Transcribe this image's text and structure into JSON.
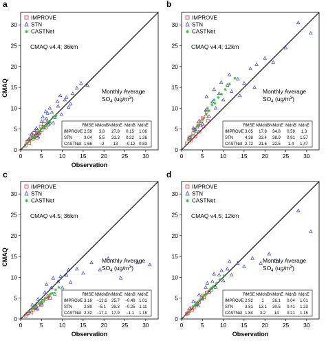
{
  "colors": {
    "IMPROVE": "#e8302c",
    "STN": "#2f3fd8",
    "CASTNet": "#33c233",
    "line": "#000000",
    "axis": "#000000"
  },
  "chart_data": [
    {
      "type": "scatter",
      "panel_label": "a",
      "annotation": "CMAQ v4.4; 36km",
      "avg_line1": "Monthly  Average",
      "avg_line2_pre": "SO",
      "avg_line2_sub": "4",
      "avg_line2_mid": " (ug/m",
      "avg_line2_sup": "3",
      "avg_line2_post": ")",
      "xlabel": "Observation",
      "ylabel": "CMAQ",
      "xlim": [
        0,
        33
      ],
      "ylim": [
        0,
        33
      ],
      "x_ticks": [
        "0",
        "5",
        "10",
        "15",
        "20",
        "25",
        "30"
      ],
      "y_ticks": [
        "0",
        "5",
        "10",
        "15",
        "20",
        "25",
        "30"
      ],
      "show_xlabel": true,
      "legend": [
        "IMPROVE",
        "STN",
        "CASTNet"
      ],
      "stats_headers": [
        "RMSE",
        "NMdnB",
        "NMdnE",
        "MdnB",
        "MdnE"
      ],
      "stats_rows": [
        {
          "network": "IMPROVE",
          "values": [
            "2.59",
            "3.8",
            "27.8",
            "0.15",
            "1.06"
          ]
        },
        {
          "network": "STN",
          "values": [
            "3.04",
            "5.5",
            "31.3",
            "0.22",
            "1.26"
          ]
        },
        {
          "network": "CASTNet",
          "values": [
            "1.66",
            "−2",
            "13",
            "−0.12",
            "0.83"
          ]
        }
      ],
      "series": [
        {
          "name": "IMPROVE",
          "x": [
            1.2,
            1.8,
            2.1,
            2.5,
            3.0,
            3.2,
            3.6,
            4.0,
            4.3,
            4.8,
            5.1,
            5.5,
            6.0,
            2.8,
            3.9,
            4.6,
            5.8,
            6.5,
            1.5,
            2.3
          ],
          "y": [
            1.0,
            2.2,
            1.6,
            3.0,
            2.6,
            4.1,
            3.3,
            4.5,
            3.8,
            5.6,
            4.7,
            6.2,
            5.3,
            3.5,
            2.9,
            4.2,
            6.9,
            6.0,
            1.9,
            2.7
          ]
        },
        {
          "name": "STN",
          "x": [
            2.0,
            2.6,
            3.2,
            3.8,
            4.4,
            5.0,
            5.6,
            6.2,
            6.8,
            7.5,
            8.2,
            9.0,
            9.8,
            10.6,
            11.5,
            12.5,
            13.5,
            14.5,
            16.0,
            4.2,
            5.3,
            6.5,
            7.8,
            8.8,
            3.4,
            9.5,
            11.0,
            12.0,
            7.0,
            6.0
          ],
          "y": [
            2.5,
            3.8,
            3.0,
            5.2,
            4.0,
            6.8,
            5.4,
            7.5,
            6.2,
            9.0,
            7.8,
            10.5,
            8.5,
            12.0,
            10.2,
            13.5,
            14.8,
            16.0,
            15.5,
            3.1,
            7.9,
            8.8,
            6.5,
            11.6,
            4.6,
            13.0,
            12.6,
            11.0,
            10.0,
            9.2
          ]
        },
        {
          "name": "CASTNet",
          "x": [
            1.5,
            2.2,
            2.9,
            3.5,
            4.1,
            4.7,
            5.3,
            5.9,
            6.5,
            7.1,
            7.8,
            8.5,
            3.1,
            4.9,
            6.2
          ],
          "y": [
            1.6,
            2.0,
            3.1,
            3.2,
            4.4,
            4.5,
            5.5,
            5.6,
            6.8,
            6.6,
            7.9,
            8.2,
            2.8,
            5.1,
            5.9
          ]
        }
      ]
    },
    {
      "type": "scatter",
      "panel_label": "b",
      "annotation": "CMAQ v4.4; 12km",
      "avg_line1": "Monthly  Average",
      "avg_line2_pre": "SO",
      "avg_line2_sub": "4",
      "avg_line2_mid": " (ug/m",
      "avg_line2_sup": "3",
      "avg_line2_post": ")",
      "xlabel": "",
      "ylabel": "",
      "xlim": [
        0,
        33
      ],
      "ylim": [
        0,
        33
      ],
      "x_ticks": [
        "0",
        "5",
        "10",
        "15",
        "20",
        "25",
        "30"
      ],
      "y_ticks": [
        "0",
        "5",
        "10",
        "15",
        "20",
        "25",
        "30"
      ],
      "show_xlabel": false,
      "legend": [
        "IMPROVE",
        "STN",
        "CASTNet"
      ],
      "stats_headers": [
        "RMSE",
        "NMdnB",
        "NMdnE",
        "MdnB",
        "MdnE"
      ],
      "stats_rows": [
        {
          "network": "IMPROVE",
          "values": [
            "3.05",
            "17.8",
            "34.8",
            "0.59",
            "1.3"
          ]
        },
        {
          "network": "STN",
          "values": [
            "4.38",
            "23.4",
            "38.9",
            "0.91",
            "1.57"
          ]
        },
        {
          "network": "CASTNet",
          "values": [
            "2.72",
            "21.6",
            "22.5",
            "1.4",
            "1.47"
          ]
        }
      ],
      "series": [
        {
          "name": "IMPROVE",
          "x": [
            1.2,
            1.8,
            2.3,
            2.8,
            3.3,
            3.8,
            4.3,
            4.8,
            5.3,
            5.8,
            6.3,
            2.0,
            3.0,
            4.0,
            5.0,
            6.0
          ],
          "y": [
            1.6,
            2.8,
            2.2,
            4.0,
            3.2,
            5.4,
            4.4,
            6.8,
            5.6,
            8.0,
            7.0,
            3.0,
            4.8,
            6.2,
            7.6,
            9.2
          ]
        },
        {
          "name": "STN",
          "x": [
            2.0,
            2.8,
            3.5,
            4.2,
            5.0,
            5.8,
            6.6,
            7.4,
            8.2,
            9.0,
            10.0,
            11.0,
            12.0,
            13.5,
            15.0,
            16.5,
            18.0,
            20.0,
            22.0,
            25.0,
            28.0,
            31.0,
            4.5,
            6.0,
            7.8,
            9.5,
            11.5,
            3.2,
            14.0,
            17.5
          ],
          "y": [
            3.0,
            5.2,
            4.4,
            7.0,
            6.2,
            9.5,
            8.0,
            11.5,
            10.0,
            13.5,
            12.0,
            15.5,
            14.0,
            17.0,
            16.0,
            19.5,
            20.5,
            22.0,
            21.0,
            24.5,
            30.5,
            28.0,
            5.8,
            12.8,
            14.5,
            16.2,
            18.0,
            5.0,
            13.0,
            15.0
          ]
        },
        {
          "name": "CASTNet",
          "x": [
            1.6,
            2.4,
            3.1,
            3.8,
            4.5,
            5.2,
            5.9,
            6.6,
            7.3,
            8.0,
            8.8,
            9.6,
            10.5,
            11.5,
            12.8,
            4.0,
            6.2,
            7.8
          ],
          "y": [
            2.4,
            3.4,
            4.5,
            5.6,
            6.8,
            7.5,
            8.6,
            9.4,
            10.8,
            11.2,
            12.6,
            13.4,
            14.5,
            15.8,
            17.2,
            6.0,
            10.0,
            12.0
          ]
        }
      ]
    },
    {
      "type": "scatter",
      "panel_label": "c",
      "annotation": "CMAQ v4.5; 36km",
      "avg_line1": "Monthly  Average",
      "avg_line2_pre": "SO",
      "avg_line2_sub": "4",
      "avg_line2_mid": " (ug/m",
      "avg_line2_sup": "3",
      "avg_line2_post": ")",
      "xlabel": "Observation",
      "ylabel": "CMAQ",
      "xlim": [
        0,
        33
      ],
      "ylim": [
        0,
        33
      ],
      "x_ticks": [
        "0",
        "5",
        "10",
        "15",
        "20",
        "25",
        "30"
      ],
      "y_ticks": [
        "0",
        "5",
        "10",
        "15",
        "20",
        "25",
        "30"
      ],
      "show_xlabel": true,
      "legend": [
        "IMPROVE",
        "STN",
        "CASTNet"
      ],
      "stats_headers": [
        "RMSE",
        "NMdnB",
        "NMdnE",
        "MdnB",
        "MdnE"
      ],
      "stats_rows": [
        {
          "network": "IMPROVE",
          "values": [
            "3.16",
            "−12.6",
            "25.7",
            "−0.49",
            "1.01"
          ]
        },
        {
          "network": "STN",
          "values": [
            "2.89",
            "−5.1",
            "29.3",
            "−0.25",
            "1.11"
          ]
        },
        {
          "network": "CASTNet",
          "values": [
            "2.32",
            "−17.1",
            "17.9",
            "−1.1",
            "1.15"
          ]
        }
      ],
      "series": [
        {
          "name": "IMPROVE",
          "x": [
            1.2,
            1.8,
            2.4,
            3.0,
            3.6,
            4.2,
            4.8,
            5.4,
            6.0,
            6.6,
            2.6,
            3.8,
            5.0,
            7.0,
            1.5
          ],
          "y": [
            0.8,
            1.4,
            2.0,
            2.2,
            2.9,
            3.3,
            3.6,
            4.4,
            4.8,
            5.5,
            1.6,
            2.5,
            3.4,
            5.0,
            1.2
          ]
        },
        {
          "name": "STN",
          "x": [
            2.0,
            2.8,
            3.5,
            4.2,
            5.0,
            5.8,
            6.6,
            7.4,
            8.2,
            9.0,
            10.0,
            11.0,
            12.0,
            13.5,
            15.0,
            17.0,
            19.0,
            21.0,
            24.0,
            28.0,
            31.0,
            4.0,
            6.2,
            7.8,
            9.6,
            11.5
          ],
          "y": [
            1.8,
            3.4,
            2.6,
            4.8,
            3.8,
            6.4,
            5.2,
            7.5,
            6.0,
            9.0,
            7.5,
            10.5,
            8.8,
            12.0,
            11.0,
            13.5,
            11.8,
            14.5,
            9.8,
            13.5,
            13.0,
            2.4,
            8.3,
            9.8,
            10.2,
            11.8
          ]
        },
        {
          "name": "CASTNet",
          "x": [
            2.0,
            2.8,
            3.6,
            4.4,
            5.2,
            6.0,
            6.8,
            7.6,
            8.4,
            9.2,
            3.2,
            5.6,
            7.2,
            4.8
          ],
          "y": [
            1.8,
            2.4,
            3.0,
            3.7,
            4.2,
            5.0,
            5.6,
            6.2,
            7.0,
            7.6,
            2.8,
            4.6,
            6.0,
            4.0
          ]
        }
      ]
    },
    {
      "type": "scatter",
      "panel_label": "d",
      "annotation": "CMAQ v4.5; 12km",
      "avg_line1": "Monthly  Average",
      "avg_line2_pre": "SO",
      "avg_line2_sub": "4",
      "avg_line2_mid": " (ug/m",
      "avg_line2_sup": "3",
      "avg_line2_post": ")",
      "xlabel": "Observation",
      "ylabel": "",
      "xlim": [
        0,
        33
      ],
      "ylim": [
        0,
        33
      ],
      "x_ticks": [
        "0",
        "5",
        "10",
        "15",
        "20",
        "25",
        "30"
      ],
      "y_ticks": [
        "0",
        "5",
        "10",
        "15",
        "20",
        "25",
        "30"
      ],
      "show_xlabel": true,
      "legend": [
        "IMPROVE",
        "STN",
        "CASTNet"
      ],
      "stats_headers": [
        "RMSE",
        "NMdnB",
        "NMdnE",
        "MdnB",
        "MdnE"
      ],
      "stats_rows": [
        {
          "network": "IMPROVE",
          "values": [
            "2.92",
            "1",
            "26.1",
            "0.04",
            "1.01"
          ]
        },
        {
          "network": "STN",
          "values": [
            "3.81",
            "13.1",
            "30.5",
            "0.41",
            "1.23"
          ]
        },
        {
          "network": "CASTNet",
          "values": [
            "1.84",
            "3.2",
            "14",
            "0.21",
            "1.15"
          ]
        }
      ],
      "series": [
        {
          "name": "IMPROVE",
          "x": [
            1.2,
            1.8,
            2.4,
            3.0,
            3.6,
            4.2,
            4.8,
            5.4,
            6.0,
            6.6,
            2.6,
            3.8,
            5.0,
            1.5,
            7.2
          ],
          "y": [
            1.2,
            1.9,
            2.5,
            2.8,
            3.8,
            4.0,
            5.0,
            5.2,
            6.4,
            6.5,
            2.2,
            3.6,
            5.6,
            1.4,
            7.0
          ]
        },
        {
          "name": "STN",
          "x": [
            2.0,
            2.8,
            3.5,
            4.2,
            5.0,
            5.8,
            6.6,
            7.4,
            8.2,
            9.0,
            10.0,
            11.0,
            12.0,
            13.5,
            15.0,
            17.0,
            19.0,
            21.0,
            23.0,
            28.0,
            31.0,
            4.0,
            6.2,
            7.8,
            9.6,
            11.5
          ],
          "y": [
            2.6,
            4.2,
            3.4,
            5.8,
            4.8,
            7.6,
            6.4,
            9.0,
            7.6,
            10.6,
            9.2,
            12.0,
            10.6,
            13.4,
            12.6,
            14.6,
            13.4,
            15.6,
            13.8,
            26.0,
            21.0,
            3.2,
            8.6,
            10.8,
            11.6,
            13.8
          ]
        },
        {
          "name": "CASTNet",
          "x": [
            2.0,
            2.8,
            3.6,
            4.4,
            5.2,
            6.0,
            6.8,
            7.6,
            8.4,
            9.2,
            10.2,
            3.2,
            5.6,
            7.2
          ],
          "y": [
            2.1,
            3.0,
            3.7,
            4.6,
            5.4,
            6.0,
            7.1,
            7.8,
            8.6,
            9.5,
            10.4,
            3.3,
            5.8,
            7.5
          ]
        }
      ]
    }
  ]
}
